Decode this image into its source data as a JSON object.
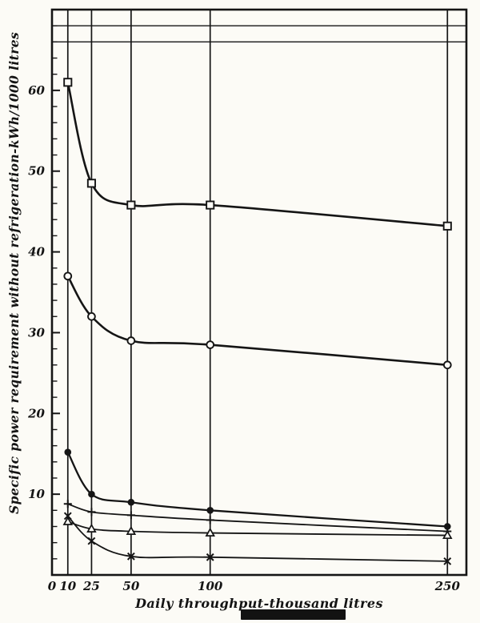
{
  "figure": {
    "paper_color": "#fcfbf6",
    "ink_color": "#151515"
  },
  "chart_data": {
    "type": "line",
    "title": "",
    "xlabel": "Daily throughput-thousand litres",
    "ylabel": "Specific power requirement without refrigeration-kWh/1000 litres",
    "xlim": [
      0,
      262
    ],
    "ylim": [
      0,
      70
    ],
    "x_ticks": [
      0,
      10,
      25,
      50,
      100,
      250
    ],
    "y_ticks": [
      10,
      20,
      30,
      40,
      50,
      60
    ],
    "y_minor_step": 2,
    "x_gridlines": [
      10,
      25,
      50,
      100,
      250
    ],
    "y_gridlines_top": [
      66,
      68
    ],
    "grid": "partial",
    "legend": "none",
    "series": [
      {
        "name": "open-squares",
        "marker": "square",
        "x": [
          10,
          25,
          50,
          100,
          250
        ],
        "y": [
          61,
          48.5,
          45.8,
          45.8,
          43.2
        ]
      },
      {
        "name": "open-circles",
        "marker": "circle",
        "x": [
          10,
          25,
          50,
          100,
          250
        ],
        "y": [
          37,
          32,
          29,
          28.5,
          26
        ]
      },
      {
        "name": "filled-circles",
        "marker": "filled-circle",
        "x": [
          10,
          25,
          50,
          100,
          250
        ],
        "y": [
          15.2,
          10,
          9,
          8,
          6
        ]
      },
      {
        "name": "plus-marks",
        "marker": "plus",
        "x": [
          10,
          25,
          50,
          100,
          250
        ],
        "y": [
          8.8,
          7.8,
          7.4,
          6.8,
          5.4
        ]
      },
      {
        "name": "open-triangles",
        "marker": "triangle",
        "x": [
          10,
          25,
          50,
          100,
          250
        ],
        "y": [
          6.6,
          5.7,
          5.4,
          5.2,
          4.9
        ]
      },
      {
        "name": "x-marks",
        "marker": "x",
        "x": [
          10,
          25,
          50,
          100,
          250
        ],
        "y": [
          7.3,
          4.2,
          2.3,
          2.2,
          1.7
        ]
      }
    ]
  }
}
